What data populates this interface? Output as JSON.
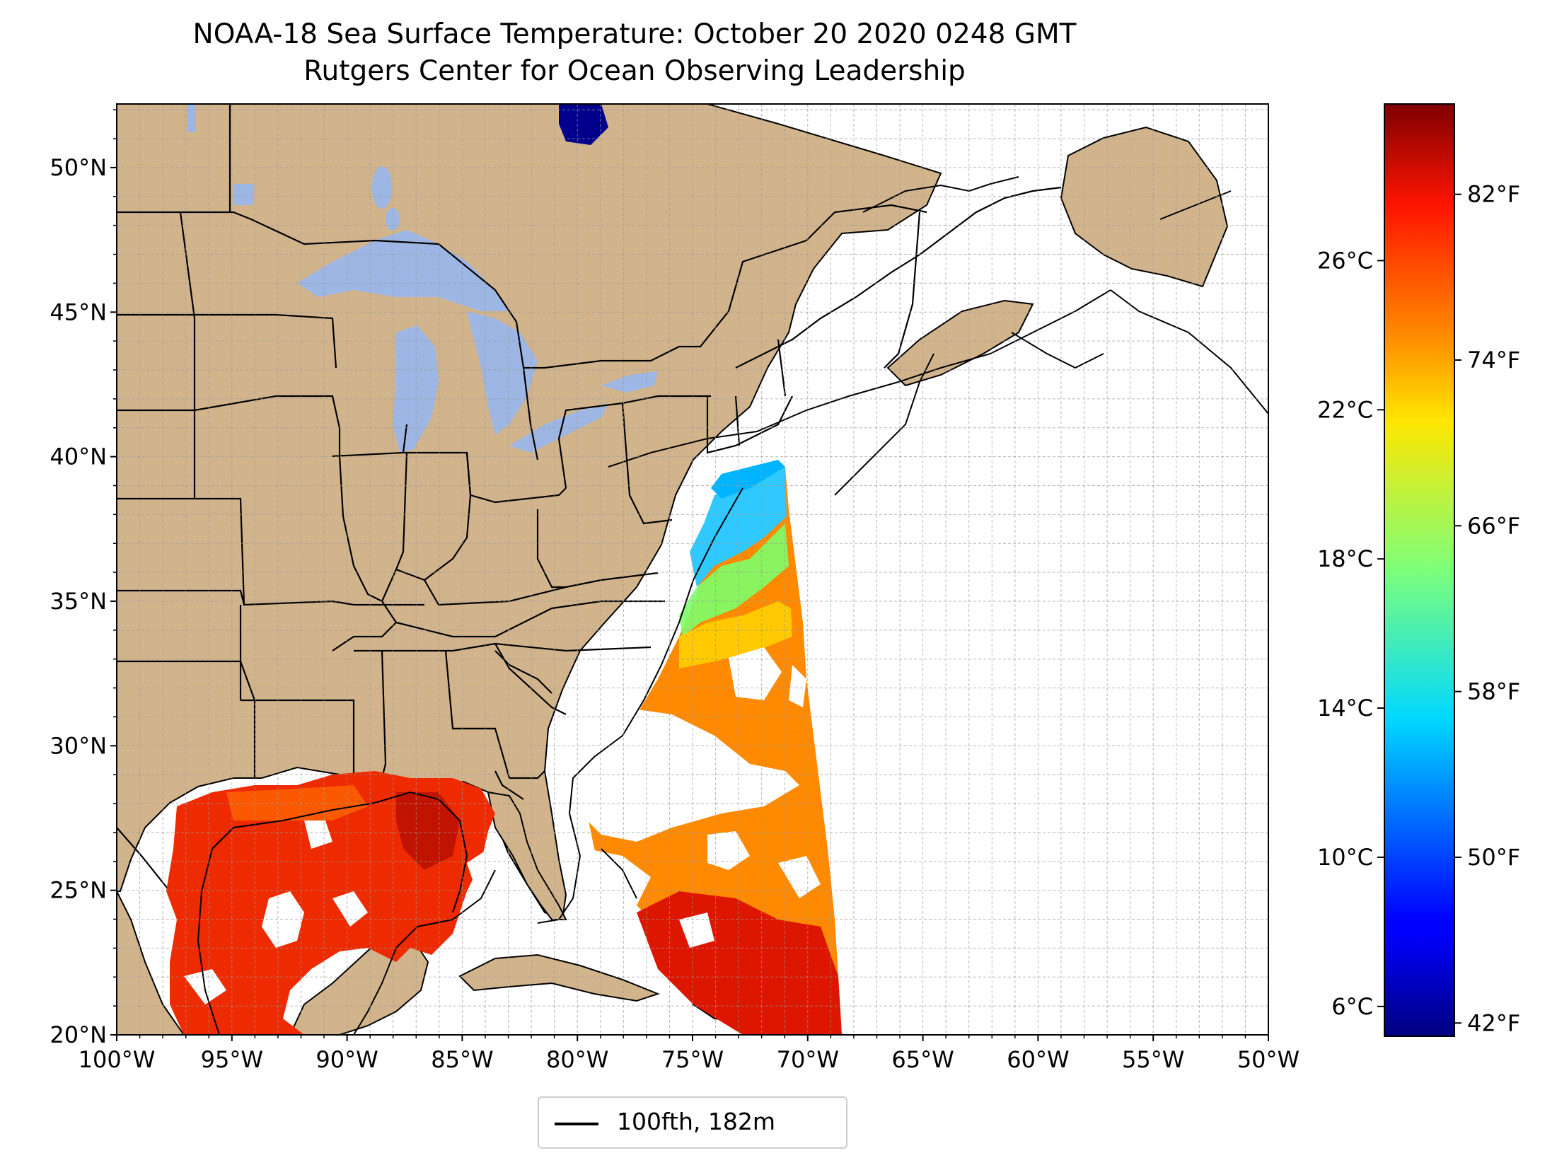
{
  "title": {
    "line1": "NOAA-18 Sea Surface Temperature: October 20 2020 0248 GMT",
    "line2": "Rutgers Center for Ocean Observing Leadership"
  },
  "map": {
    "extent": {
      "lon": [
        -100,
        -50
      ],
      "lat": [
        20,
        52.2
      ]
    },
    "lon_ticks": [
      "100°W",
      "95°W",
      "90°W",
      "85°W",
      "80°W",
      "75°W",
      "70°W",
      "65°W",
      "60°W",
      "55°W",
      "50°W"
    ],
    "lat_ticks": [
      "20°N",
      "25°N",
      "30°N",
      "35°N",
      "40°N",
      "45°N",
      "50°N"
    ],
    "gridlines": true,
    "colors": {
      "land": "#d2b48c",
      "lakes": "#9db6e4",
      "ocean_nodata": "#ffffff",
      "borders": "#000000"
    }
  },
  "colorbar": {
    "colormap": "jet",
    "celsius_ticks": [
      "6°C",
      "10°C",
      "14°C",
      "18°C",
      "22°C",
      "26°C"
    ],
    "fahrenheit_ticks": [
      "42°F",
      "50°F",
      "58°F",
      "66°F",
      "74°F",
      "82°F"
    ],
    "range_c": [
      5.2,
      30.2
    ]
  },
  "legend": {
    "label": "100fth, 182m"
  }
}
